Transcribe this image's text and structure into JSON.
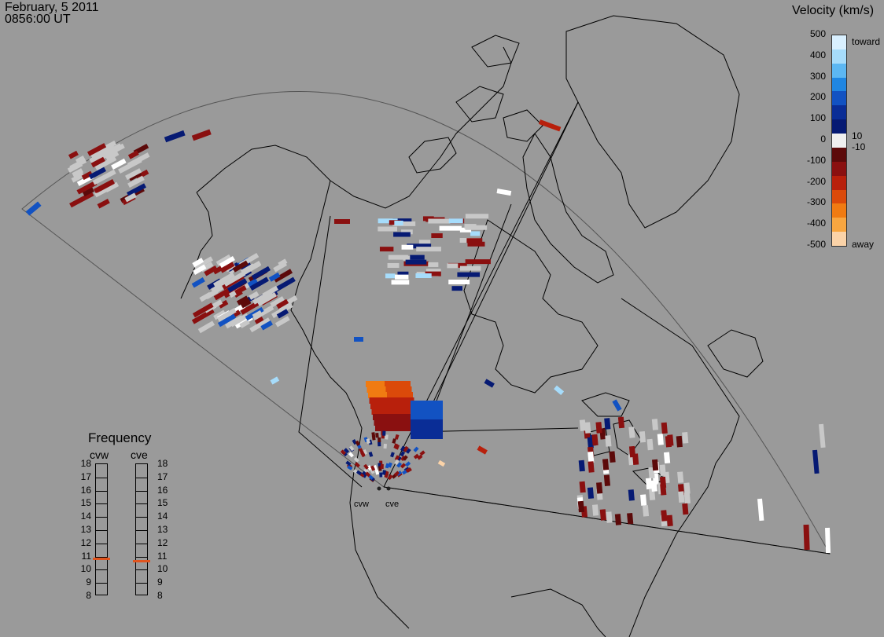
{
  "header": {
    "date": "February, 5 2011",
    "time": "0856:00 UT"
  },
  "colorbar": {
    "title": "Velocity (km/s)",
    "ticks": [
      "500",
      "400",
      "300",
      "200",
      "100",
      "0",
      "-100",
      "-200",
      "-300",
      "-400",
      "-500"
    ],
    "inner_ticks": [
      "10",
      "-10"
    ],
    "end_labels": [
      "toward",
      "away"
    ],
    "colors": [
      "#d9f0ff",
      "#a6dcfb",
      "#5cb7f2",
      "#1f86e2",
      "#1252c2",
      "#0a2d96",
      "#061a73",
      "#f0f0f0",
      "#5c0a0a",
      "#8a1010",
      "#b8200c",
      "#db4a0a",
      "#f07b12",
      "#f8a640",
      "#fbd3a8"
    ]
  },
  "frequency": {
    "title": "Frequency",
    "columns": [
      {
        "name": "cvw",
        "selected_mhz": 10.8
      },
      {
        "name": "cve",
        "selected_mhz": 10.6
      }
    ],
    "levels": [
      "18",
      "17",
      "16",
      "15",
      "14",
      "13",
      "12",
      "11",
      "10",
      "9",
      "8"
    ],
    "marker_color": "#e0541e"
  },
  "map": {
    "land_color": "#9a9a9a",
    "coast_color": "#000000",
    "radar_sites": [
      {
        "id": "cvw",
        "label": "cvw"
      },
      {
        "id": "cve",
        "label": "cve"
      }
    ]
  }
}
